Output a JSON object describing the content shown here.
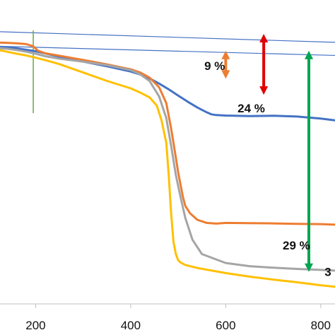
{
  "chart_data": {
    "type": "line",
    "title": "",
    "xlabel": "",
    "ylabel": "",
    "xlim": [
      125,
      830
    ],
    "ylim": [
      0,
      100
    ],
    "grid": false,
    "legend": "none",
    "x_ticks": [
      200,
      400,
      600,
      800
    ],
    "x_tick_labels": [
      "200",
      "400",
      "600",
      "800"
    ],
    "series": [
      {
        "color": "#4472C4",
        "x": [
          125,
          140,
          160,
          180,
          200,
          220,
          250,
          300,
          350,
          400,
          430,
          460,
          480,
          500,
          520,
          540,
          560,
          570,
          580,
          600,
          650,
          700,
          750,
          800,
          830
        ],
        "y": [
          98.4,
          98.4,
          98.2,
          97.6,
          97.0,
          96.1,
          94.8,
          92.8,
          90.9,
          88.8,
          87.0,
          83.9,
          81.6,
          79.1,
          76.6,
          74.3,
          72.3,
          71.5,
          71.2,
          71.0,
          70.8,
          70.9,
          70.6,
          69.8,
          69.1
        ]
      },
      {
        "color": "#ED7D31",
        "x": [
          125,
          140,
          160,
          180,
          195,
          205,
          220,
          250,
          300,
          350,
          400,
          420,
          440,
          460,
          475,
          485,
          495,
          500,
          505,
          510,
          515,
          525,
          540,
          560,
          580,
          600,
          650,
          700,
          750,
          800,
          830
        ],
        "y": [
          100.5,
          100.4,
          100.2,
          99.9,
          99.0,
          97.2,
          96.2,
          95.2,
          93.5,
          91.7,
          89.7,
          88.4,
          86.3,
          82.4,
          76.0,
          66.0,
          54.0,
          48.0,
          43.0,
          38.0,
          34.5,
          31.5,
          28.9,
          27.6,
          27.3,
          27.6,
          27.5,
          27.4,
          27.2,
          27.1,
          26.9
        ]
      },
      {
        "color": "#A5A5A5",
        "x": [
          125,
          140,
          160,
          180,
          200,
          220,
          250,
          300,
          350,
          400,
          420,
          440,
          460,
          475,
          485,
          495,
          505,
          515,
          530,
          550,
          600,
          650,
          700,
          750,
          800,
          830
        ],
        "y": [
          98.2,
          98.0,
          97.5,
          96.8,
          96.0,
          95.0,
          94.0,
          92.8,
          91.4,
          89.4,
          87.7,
          84.9,
          78.7,
          70.0,
          59.0,
          47.0,
          38.0,
          29.6,
          20.8,
          15.0,
          11.4,
          10.1,
          9.5,
          9.0,
          8.6,
          8.3
        ]
      },
      {
        "color": "#FFC000",
        "x": [
          125,
          140,
          160,
          180,
          200,
          220,
          250,
          300,
          350,
          400,
          420,
          440,
          455,
          465,
          475,
          480,
          485,
          490,
          495,
          500,
          505,
          515,
          540,
          600,
          650,
          700,
          750,
          800,
          830
        ],
        "y": [
          97.4,
          96.8,
          96.0,
          95.3,
          94.4,
          93.4,
          91.8,
          88.4,
          85.0,
          82.0,
          80.3,
          78.3,
          75.0,
          69.0,
          60.0,
          47.0,
          32.0,
          20.0,
          15.0,
          12.5,
          11.6,
          10.6,
          9.4,
          7.3,
          5.9,
          4.7,
          3.6,
          2.4,
          1.8
        ]
      }
    ],
    "reference_lines": [
      {
        "color": "#4472C4",
        "x": [
          125,
          830
        ],
        "y": [
          104.9,
          100.6
        ]
      },
      {
        "color": "#4472C4",
        "x": [
          125,
          830
        ],
        "y": [
          99.0,
          95.3
        ]
      },
      {
        "color": "#70AD47",
        "x": [
          195,
          195
        ],
        "y": [
          105.4,
          72.0
        ]
      }
    ],
    "annotations": [
      {
        "label": "9 %",
        "color": "#ED7D31",
        "x": 600,
        "y_from": 97.2,
        "y_to": 85.9,
        "label_x": 555,
        "label_y": 91.1
      },
      {
        "label": "24 %",
        "color": "#E00000",
        "x": 680,
        "y_from": 104.0,
        "y_to": 79.4,
        "label_x": 625,
        "label_y": 74.0
      },
      {
        "label": "29 %",
        "color": "#00A550",
        "x": 775,
        "y_from": 97.2,
        "y_to": 7.8,
        "label_x": 720,
        "label_y": 18.6
      },
      {
        "label": "3",
        "color": "#00A550",
        "x": 800,
        "y_from": 0,
        "y_to": 0,
        "label_x": 808,
        "label_y": 7.8
      }
    ]
  }
}
